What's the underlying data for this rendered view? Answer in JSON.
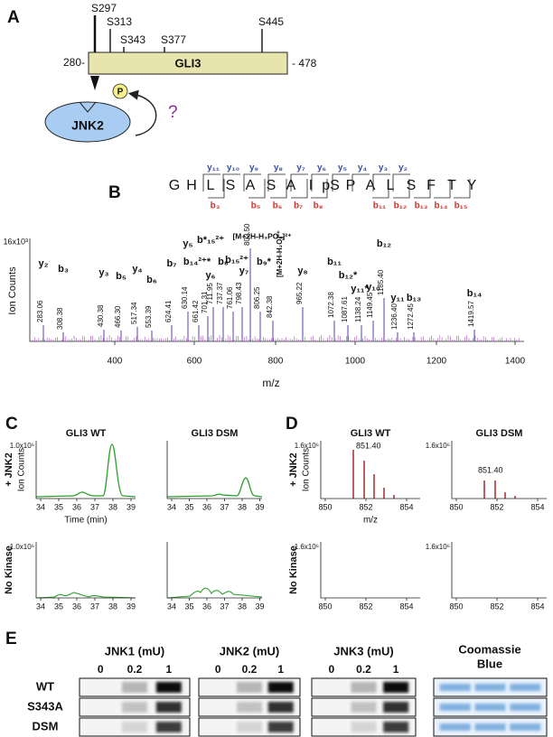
{
  "panel_a": {
    "letter": "A",
    "sites": [
      "S297",
      "S313",
      "S343",
      "S377",
      "S445"
    ],
    "protein": "GLI3",
    "start_label": "280-",
    "end_label": "- 478",
    "phospho": "P",
    "kinase": "JNK2",
    "question": "?"
  },
  "panel_b": {
    "letter": "B",
    "sequence": [
      "G",
      "H",
      "L",
      "S",
      "A",
      "S",
      "A",
      "I",
      "pS",
      "P",
      "A",
      "L",
      "S",
      "F",
      "T",
      "Y"
    ],
    "y_ions": [
      "y₁₁",
      "y₁₀",
      "y₉",
      "y₈",
      "y₇",
      "y₆",
      "y₅",
      "y₄",
      "y₃",
      "y₂"
    ],
    "b_ions": [
      "b₃",
      "b₅",
      "b₆",
      "b₇",
      "b₈",
      "b₁₁",
      "b₁₂",
      "b₁₃",
      "b₁₄",
      "b₁₅"
    ],
    "y_axis_label": "Ion Counts",
    "y_max_label": "16x10³",
    "x_axis_label": "m/z",
    "x_ticks": [
      400,
      600,
      800,
      1000,
      1200,
      1400
    ],
    "peaks": [
      {
        "ion": "y₂",
        "mz": "283.06"
      },
      {
        "ion": "b₃",
        "mz": "308.38"
      },
      {
        "ion": "y₃",
        "mz": "430.38"
      },
      {
        "ion": "b₅",
        "mz": "466.30"
      },
      {
        "ion": "y₄",
        "mz": "517.34"
      },
      {
        "ion": "b₆",
        "mz": "553.39"
      },
      {
        "ion": "b₇",
        "mz": "624.41"
      },
      {
        "ion": "y₅",
        "mz": "630.14"
      },
      {
        "ion": "b₁₄²⁺*",
        "mz": "661.42"
      },
      {
        "ion": "y₆",
        "mz": "701.31"
      },
      {
        "ion": "b*₁₅²⁺",
        "mz": "711.95"
      },
      {
        "ion": "b₈",
        "mz": "737.37"
      },
      {
        "ion": "b₁₅²⁺",
        "mz": "761.06"
      },
      {
        "ion": "y₇",
        "mz": "798.43"
      },
      {
        "ion": "[M+2H-H₃PO₄]²⁺",
        "mz": "802.50"
      },
      {
        "ion": "b₉*",
        "mz": "806.25"
      },
      {
        "ion": "[M+2H-H₂O]²⁺",
        "mz": "842.38"
      },
      {
        "ion": "y₈",
        "mz": "965.22"
      },
      {
        "ion": "b₁₁",
        "mz": "1072.38"
      },
      {
        "ion": "b₁₂*",
        "mz": "1087.61"
      },
      {
        "ion": "y₁₁*",
        "mz": "1138.24"
      },
      {
        "ion": "y₁₀",
        "mz": "1149.45"
      },
      {
        "ion": "b₁₂",
        "mz": "1185.40"
      },
      {
        "ion": "y₁₁",
        "mz": "1236.40"
      },
      {
        "ion": "b₁₃",
        "mz": "1272.45"
      },
      {
        "ion": "b₁₄",
        "mz": "1419.57"
      }
    ]
  },
  "panel_c": {
    "letter": "C",
    "columns": [
      "GLI3 WT",
      "GLI3 DSM"
    ],
    "rows": [
      "+ JNK2",
      "No Kinase"
    ],
    "y_axis_label": "Ion Counts",
    "y_max_label": "1.0x10⁶",
    "x_axis_label": "Time (min)",
    "x_ticks": [
      34,
      35,
      36,
      37,
      38,
      39
    ]
  },
  "panel_d": {
    "letter": "D",
    "columns": [
      "GLI3 WT",
      "GLI3 DSM"
    ],
    "rows": [
      "+ JNK2",
      "No Kinase"
    ],
    "y_axis_label": "Ion Counts",
    "y_max_label": "1.6x10⁶",
    "x_axis_label": "m/z",
    "x_ticks": [
      850,
      852,
      854
    ],
    "peak_labels": [
      "851.40",
      "851.40"
    ]
  },
  "panel_e": {
    "letter": "E",
    "kinases": [
      "JNK1 (mU)",
      "JNK2 (mU)",
      "JNK3 (mU)"
    ],
    "stain": [
      "Coomassie",
      "Blue"
    ],
    "doses": [
      "0",
      "0.2",
      "1"
    ],
    "samples": [
      "WT",
      "S343A",
      "DSM"
    ]
  }
}
